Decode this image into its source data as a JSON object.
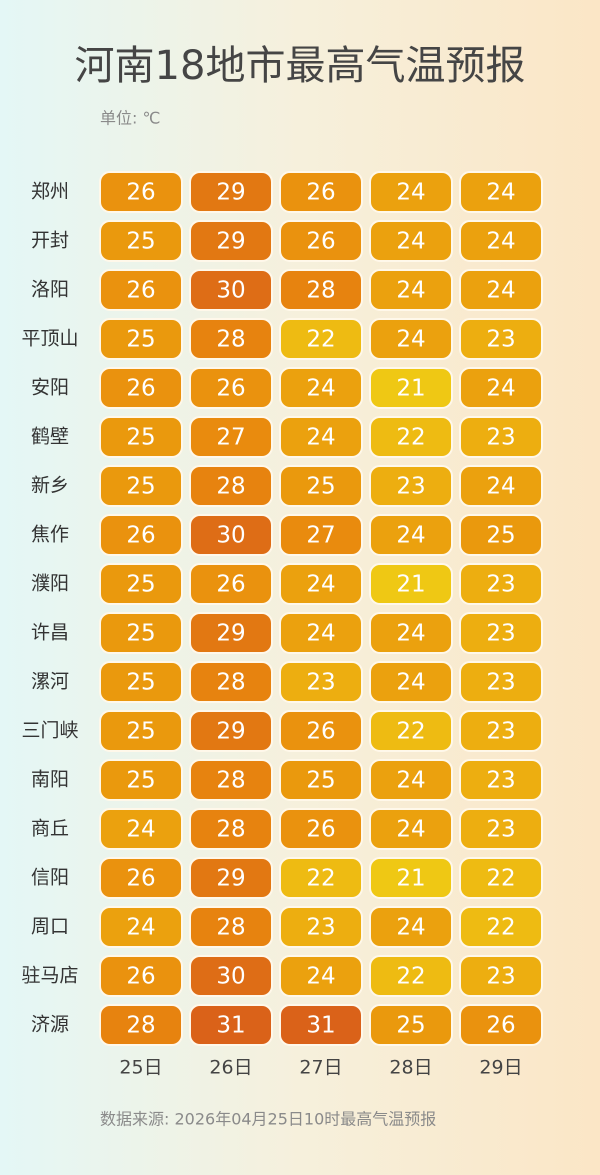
{
  "chart_data": {
    "type": "heatmap",
    "title": "河南18地市最高气温预报",
    "subtitle": "单位: ℃",
    "source": "数据来源: 2026年04月25日10时最高气温预报",
    "columns": [
      "25日",
      "26日",
      "27日",
      "28日",
      "29日"
    ],
    "rows": [
      "郑州",
      "开封",
      "洛阳",
      "平顶山",
      "安阳",
      "鹤壁",
      "新乡",
      "焦作",
      "濮阳",
      "许昌",
      "漯河",
      "三门峡",
      "南阳",
      "商丘",
      "信阳",
      "周口",
      "驻马店",
      "济源"
    ],
    "values": [
      [
        26,
        29,
        26,
        24,
        24
      ],
      [
        25,
        29,
        26,
        24,
        24
      ],
      [
        26,
        30,
        28,
        24,
        24
      ],
      [
        25,
        28,
        22,
        24,
        23
      ],
      [
        26,
        26,
        24,
        21,
        24
      ],
      [
        25,
        27,
        24,
        22,
        23
      ],
      [
        25,
        28,
        25,
        23,
        24
      ],
      [
        26,
        30,
        27,
        24,
        25
      ],
      [
        25,
        26,
        24,
        21,
        23
      ],
      [
        25,
        29,
        24,
        24,
        23
      ],
      [
        25,
        28,
        23,
        24,
        23
      ],
      [
        25,
        29,
        26,
        22,
        23
      ],
      [
        25,
        28,
        25,
        24,
        23
      ],
      [
        24,
        28,
        26,
        24,
        23
      ],
      [
        26,
        29,
        22,
        21,
        22
      ],
      [
        24,
        28,
        23,
        24,
        22
      ],
      [
        26,
        30,
        24,
        22,
        23
      ],
      [
        28,
        31,
        31,
        25,
        26
      ]
    ],
    "colorscale": [
      "#efc814",
      "#eb9d0d",
      "#e8870e",
      "#da6219"
    ]
  }
}
